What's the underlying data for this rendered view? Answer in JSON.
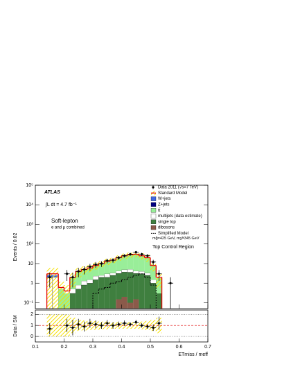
{
  "chart_data": [
    {
      "type": "histogram",
      "ylabel": "Events / 0.02",
      "yscale": "log",
      "ylim": [
        0.05,
        100000
      ],
      "yticks": [
        {
          "value": 0.1,
          "label": "10⁻¹"
        },
        {
          "value": 1,
          "label": "1"
        },
        {
          "value": 10,
          "label": "10"
        },
        {
          "value": 100,
          "label": "10²"
        },
        {
          "value": 1000,
          "label": "10³"
        },
        {
          "value": 10000,
          "label": "10⁴"
        },
        {
          "value": 100000,
          "label": "10⁵"
        }
      ],
      "xlim": [
        0.1,
        0.7
      ],
      "bins": [
        0.14,
        0.16,
        0.18,
        0.2,
        0.22,
        0.24,
        0.26,
        0.28,
        0.3,
        0.32,
        0.34,
        0.36,
        0.38,
        0.4,
        0.42,
        0.44,
        0.46,
        0.48,
        0.5,
        0.52,
        0.54
      ],
      "experiment": "ATLAS",
      "luminosity": "∫L dt = 4.7 fb⁻¹",
      "selection": "Soft-lepton",
      "channel": "e and μ combined",
      "region": "Top Control Region",
      "data": {
        "name": "Data 2011 (√s=7 TeV)",
        "color": "#000000",
        "x": [
          0.15,
          0.21,
          0.23,
          0.25,
          0.27,
          0.29,
          0.31,
          0.33,
          0.35,
          0.37,
          0.39,
          0.41,
          0.43,
          0.45,
          0.47,
          0.49,
          0.51,
          0.53,
          0.57
        ],
        "values": [
          2,
          3,
          2,
          4,
          5,
          7,
          9,
          10,
          14,
          15,
          20,
          25,
          30,
          38,
          30,
          25,
          12,
          3,
          1
        ],
        "errors": [
          1.4,
          1.7,
          1.4,
          2,
          2.2,
          2.6,
          3,
          3.2,
          3.7,
          3.9,
          4.5,
          5,
          5.5,
          6.2,
          5.5,
          5,
          3.5,
          1.7,
          1
        ]
      },
      "series": [
        {
          "name": "Standard Model",
          "color": "#e00000",
          "style": "line",
          "values": [
            3,
            3,
            0.6,
            0.4,
            2,
            4,
            5,
            6,
            8,
            10,
            13,
            15,
            20,
            25,
            28,
            30,
            25,
            20,
            8,
            2
          ],
          "uncertainty": [
            1,
            1,
            1,
            1,
            0.7,
            0.5,
            0.45,
            0.4,
            0.4,
            0.35,
            0.35,
            0.3,
            0.3,
            0.3,
            0.3,
            0.3,
            0.35,
            0.4,
            0.5,
            0.7
          ]
        },
        {
          "name": "W+jets",
          "color": "#4169e1",
          "stacked": true,
          "values": [
            0.6,
            0.5,
            0,
            0,
            0,
            0,
            0,
            0,
            0,
            0,
            0,
            0,
            0,
            0,
            0,
            0,
            0,
            0,
            0,
            0
          ]
        },
        {
          "name": "Z+jets",
          "color": "#000080",
          "stacked": true,
          "values": [
            0,
            0,
            0,
            0,
            0,
            0,
            0,
            0,
            0,
            0,
            0,
            0,
            0,
            0,
            0,
            0,
            0,
            0,
            0,
            0
          ]
        },
        {
          "name": "tt̄",
          "color": "#99ee99",
          "stacked": true,
          "values": [
            0,
            0,
            0.5,
            0.3,
            1.5,
            3,
            3.5,
            4.5,
            5.5,
            7,
            10,
            11,
            15,
            19,
            22,
            25,
            20,
            16,
            6,
            1.5
          ]
        },
        {
          "name": "multijets (data estimate)",
          "color": "#ffffff",
          "stacked": true,
          "values": [
            2,
            2,
            0,
            0,
            0.2,
            0.3,
            0.5,
            0.5,
            0.8,
            0.5,
            1,
            0.8,
            1,
            1.2,
            1.5,
            1,
            1,
            0.8,
            0.5,
            0
          ]
        },
        {
          "name": "single top",
          "color": "#3f7f3f",
          "stacked": true,
          "values": [
            0,
            0,
            0,
            0,
            0.3,
            0.5,
            0.8,
            1,
            1.5,
            2,
            2,
            2.5,
            3,
            3.5,
            3.5,
            3,
            3,
            2.5,
            1,
            0.3
          ]
        },
        {
          "name": "dibosons",
          "color": "#8b5a4a",
          "stacked": true,
          "values": [
            0,
            0,
            0,
            0,
            0,
            0,
            0,
            0,
            0,
            0,
            0,
            0,
            0.15,
            0.2,
            0.1,
            0.15,
            0,
            0,
            0,
            0
          ]
        },
        {
          "name": "Simplified Model",
          "color": "#000000",
          "style": "dashed",
          "values": [
            0,
            0,
            0,
            0,
            0,
            0,
            0,
            0,
            0.3,
            0.5,
            0.6,
            1,
            1.2,
            1.5,
            2,
            2.5,
            3,
            2,
            0.8,
            0
          ]
        }
      ],
      "legend_note": "mg̃=425 GeV, mχ̃=345 GeV",
      "legend": "upper right"
    },
    {
      "type": "ratio",
      "ylabel": "Data / SM",
      "ylim": [
        -0.5,
        2.4
      ],
      "yticks": [
        0,
        1,
        2
      ],
      "reference_line": 1,
      "xlim": [
        0.1,
        0.7
      ],
      "xticks": [
        0.1,
        0.2,
        0.3,
        0.4,
        0.5,
        0.6,
        0.7
      ],
      "xlabel": "ETmiss / meff",
      "x": [
        0.15,
        0.21,
        0.23,
        0.25,
        0.27,
        0.29,
        0.31,
        0.33,
        0.35,
        0.37,
        0.39,
        0.41,
        0.43,
        0.45,
        0.47,
        0.49,
        0.51,
        0.53
      ],
      "values": [
        0.7,
        1,
        0.8,
        1.1,
        0.9,
        1.2,
        1.1,
        1,
        1.2,
        1,
        1.1,
        1.2,
        1.1,
        1.3,
        1,
        0.9,
        0.8,
        1.2
      ],
      "errors": [
        0.5,
        0.6,
        0.7,
        0.5,
        0.45,
        0.4,
        0.35,
        0.3,
        0.3,
        0.3,
        0.25,
        0.25,
        0.2,
        0.2,
        0.2,
        0.2,
        0.3,
        0.6
      ]
    }
  ]
}
